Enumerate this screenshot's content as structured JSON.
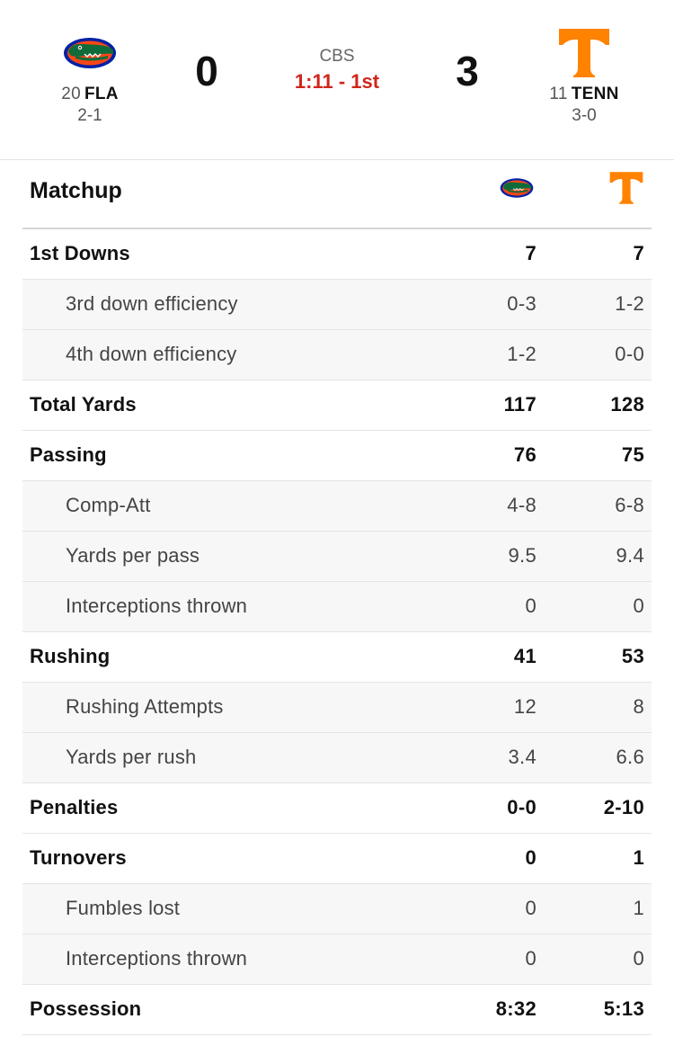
{
  "game": {
    "network": "CBS",
    "clock": "1:11 - 1st",
    "away": {
      "rank": "20",
      "abbr": "FLA",
      "record": "2-1",
      "score": "0",
      "logo": "gator-logo",
      "color": "#0021a5"
    },
    "home": {
      "rank": "11",
      "abbr": "TENN",
      "record": "3-0",
      "score": "3",
      "logo": "power-t-logo",
      "color": "#ff8200"
    }
  },
  "matchup": {
    "title": "Matchup",
    "rows": [
      {
        "label": "1st Downs",
        "away": "7",
        "home": "7",
        "sub": false
      },
      {
        "label": "3rd down efficiency",
        "away": "0-3",
        "home": "1-2",
        "sub": true
      },
      {
        "label": "4th down efficiency",
        "away": "1-2",
        "home": "0-0",
        "sub": true
      },
      {
        "label": "Total Yards",
        "away": "117",
        "home": "128",
        "sub": false
      },
      {
        "label": "Passing",
        "away": "76",
        "home": "75",
        "sub": false
      },
      {
        "label": "Comp-Att",
        "away": "4-8",
        "home": "6-8",
        "sub": true
      },
      {
        "label": "Yards per pass",
        "away": "9.5",
        "home": "9.4",
        "sub": true
      },
      {
        "label": "Interceptions thrown",
        "away": "0",
        "home": "0",
        "sub": true
      },
      {
        "label": "Rushing",
        "away": "41",
        "home": "53",
        "sub": false
      },
      {
        "label": "Rushing Attempts",
        "away": "12",
        "home": "8",
        "sub": true
      },
      {
        "label": "Yards per rush",
        "away": "3.4",
        "home": "6.6",
        "sub": true
      },
      {
        "label": "Penalties",
        "away": "0-0",
        "home": "2-10",
        "sub": false
      },
      {
        "label": "Turnovers",
        "away": "0",
        "home": "1",
        "sub": false
      },
      {
        "label": "Fumbles lost",
        "away": "0",
        "home": "1",
        "sub": true
      },
      {
        "label": "Interceptions thrown",
        "away": "0",
        "home": "0",
        "sub": true
      },
      {
        "label": "Possession",
        "away": "8:32",
        "home": "5:13",
        "sub": false
      }
    ]
  }
}
